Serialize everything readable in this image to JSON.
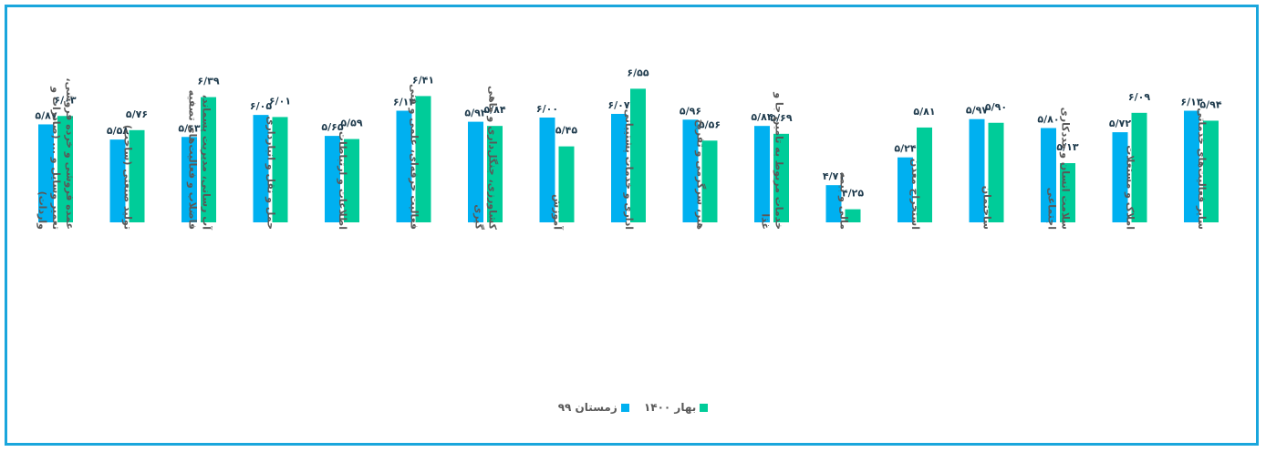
{
  "colors": {
    "series1": "#00b0f0",
    "series2": "#00cc99",
    "value_text": "#1f3b4d",
    "axis_text": "#595959",
    "border": "#1aa6dc"
  },
  "legend": {
    "items": [
      "زمستان ۹۹",
      "بهار ۱۴۰۰"
    ]
  },
  "chart_data": {
    "type": "bar",
    "legend_position": "bottom",
    "grid": false,
    "ylim": [
      4.0,
      7.2
    ],
    "categories": [
      "عمده فروشی و خرده فروشی، تعمیر وسایل و ... (صادرات و واردات)",
      "تولید صنعتی (ساخت)",
      "آب رسانی، مدیریت پسماند، فاضلاب و فعالیت‌های تصفیه",
      "حمل و نقل و انبارداری",
      "اطلاعات و ارتباطات",
      "فعالیت حرفه‌ای، علمی و فنی",
      "کشاورزی، جنگل‌داری و ماهی گیری",
      "آموزش",
      "اداری و خدمات پشتیبانی",
      "هنر، سرگرمی و تفریح",
      "خدمات مربوط به تامین جا و غذا",
      "مالی و بیمه",
      "استخراج معدن",
      "ساختمان",
      "سلامت انسان و مددکاری اجتماعی",
      "املاک و مستغلات",
      "سایر فعالیت‌های خدماتی"
    ],
    "series": [
      {
        "name": "زمستان ۹۹",
        "values": [
          5.87,
          5.58,
          5.63,
          6.05,
          5.65,
          6.13,
          5.92,
          6.0,
          6.07,
          5.96,
          5.84,
          4.71,
          5.24,
          5.97,
          5.8,
          5.72,
          6.13
        ],
        "labels": [
          "۵/۸۷",
          "۵/۵۸",
          "۵/۶۳",
          "۶/۰۵",
          "۵/۶۵",
          "۶/۱۳",
          "۵/۹۲",
          "۶/۰۰",
          "۶/۰۷",
          "۵/۹۶",
          "۵/۸۴",
          "۴/۷۱",
          "۵/۲۴",
          "۵/۹۷",
          "۵/۸۰",
          "۵/۷۲",
          "۶/۱۳"
        ]
      },
      {
        "name": "بهار ۱۴۰۰",
        "values": [
          6.03,
          5.76,
          6.39,
          6.01,
          5.59,
          6.41,
          5.84,
          5.45,
          6.55,
          5.56,
          5.69,
          4.25,
          5.81,
          5.9,
          5.13,
          6.09,
          5.94
        ],
        "labels": [
          "۶/۰۳",
          "۵/۷۶",
          "۶/۳۹",
          "۶/۰۱",
          "۵/۵۹",
          "۶/۴۱",
          "۵/۸۴",
          "۵/۴۵",
          "۶/۵۵",
          "۵/۵۶",
          "۵/۶۹",
          "۴/۲۵",
          "۵/۸۱",
          "۵/۹۰",
          "۵/۱۳",
          "۶/۰۹",
          "۵/۹۴"
        ]
      }
    ]
  }
}
